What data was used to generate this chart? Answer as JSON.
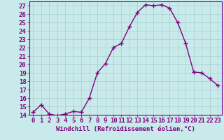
{
  "x": [
    0,
    1,
    2,
    3,
    4,
    5,
    6,
    7,
    8,
    9,
    10,
    11,
    12,
    13,
    14,
    15,
    16,
    17,
    18,
    19,
    20,
    21,
    22,
    23
  ],
  "y": [
    14.3,
    15.2,
    14.1,
    13.9,
    14.1,
    14.4,
    14.3,
    16.0,
    19.0,
    20.1,
    22.0,
    22.5,
    24.5,
    26.2,
    27.1,
    27.0,
    27.1,
    26.7,
    25.0,
    22.5,
    19.1,
    19.0,
    18.3,
    17.5
  ],
  "line_color": "#800080",
  "marker": "+",
  "marker_color": "#800080",
  "bg_color": "#c8eaea",
  "grid_color": "#a8cece",
  "xlabel": "Windchill (Refroidissement éolien,°C)",
  "ylabel": "",
  "ylim": [
    14,
    27.5
  ],
  "xlim": [
    -0.5,
    23.5
  ],
  "yticks": [
    14,
    15,
    16,
    17,
    18,
    19,
    20,
    21,
    22,
    23,
    24,
    25,
    26,
    27
  ],
  "xticks": [
    0,
    1,
    2,
    3,
    4,
    5,
    6,
    7,
    8,
    9,
    10,
    11,
    12,
    13,
    14,
    15,
    16,
    17,
    18,
    19,
    20,
    21,
    22,
    23
  ],
  "title_color": "#800080",
  "axis_color": "#800080",
  "tick_color": "#800080",
  "font_size": 6.5,
  "marker_size": 4,
  "line_width": 1.0
}
